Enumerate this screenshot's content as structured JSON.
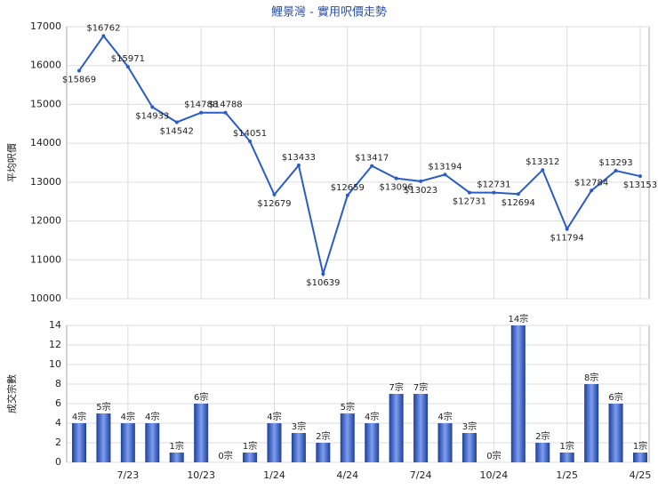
{
  "chart_data": [
    {
      "type": "line",
      "title": "鯉景灣 - 實用呎價走勢",
      "y_label": "平均呎價",
      "color": "#2a5cc8",
      "categories": [
        null,
        null,
        "7/23",
        null,
        null,
        "10/23",
        null,
        null,
        "1/24",
        null,
        null,
        "4/24",
        null,
        null,
        "7/24",
        null,
        null,
        "10/24",
        null,
        null,
        "1/25",
        null,
        null,
        "4/25"
      ],
      "values": [
        15869,
        16762,
        15971,
        14933,
        14542,
        14788,
        14788,
        14051,
        12679,
        13433,
        10639,
        12659,
        13417,
        13096,
        13023,
        13194,
        12731,
        12731,
        12694,
        13312,
        11794,
        12784,
        13293,
        13153
      ],
      "value_labels": [
        "$15869",
        "$16762",
        "$15971",
        "$14933",
        "$14542",
        "$14788",
        "$14788",
        "$14051",
        "$12679",
        "$13433",
        "$10639",
        "$12659",
        "$13417",
        "$13096",
        "$13023",
        "$13194",
        "$12731",
        "$12731",
        "$12694",
        "$13312",
        "$11794",
        "$12784",
        "$13293",
        "$13153"
      ],
      "ylim": [
        10000,
        17000
      ],
      "yticks": [
        10000,
        11000,
        12000,
        13000,
        14000,
        15000,
        16000,
        17000
      ],
      "grid": true
    },
    {
      "type": "bar",
      "y_label": "成交宗數",
      "color": "#3a62c4",
      "categories": [
        null,
        null,
        "7/23",
        null,
        null,
        "10/23",
        null,
        null,
        "1/24",
        null,
        null,
        "4/24",
        null,
        null,
        "7/24",
        null,
        null,
        "10/24",
        null,
        null,
        "1/25",
        null,
        null,
        "4/25"
      ],
      "values": [
        4,
        5,
        4,
        4,
        1,
        6,
        0,
        1,
        4,
        3,
        2,
        5,
        4,
        7,
        7,
        4,
        3,
        0,
        14,
        2,
        1,
        8,
        6,
        1
      ],
      "value_labels": [
        "4宗",
        "5宗",
        "4宗",
        "4宗",
        "1宗",
        "6宗",
        "0宗",
        "1宗",
        "4宗",
        "3宗",
        "2宗",
        "5宗",
        "4宗",
        "7宗",
        "7宗",
        "4宗",
        "3宗",
        "0宗",
        "14宗",
        "2宗",
        "1宗",
        "8宗",
        "6宗",
        "1宗"
      ],
      "ylim": [
        0,
        14
      ],
      "yticks": [
        0,
        2,
        4,
        6,
        8,
        10,
        12,
        14
      ],
      "grid": true
    }
  ]
}
